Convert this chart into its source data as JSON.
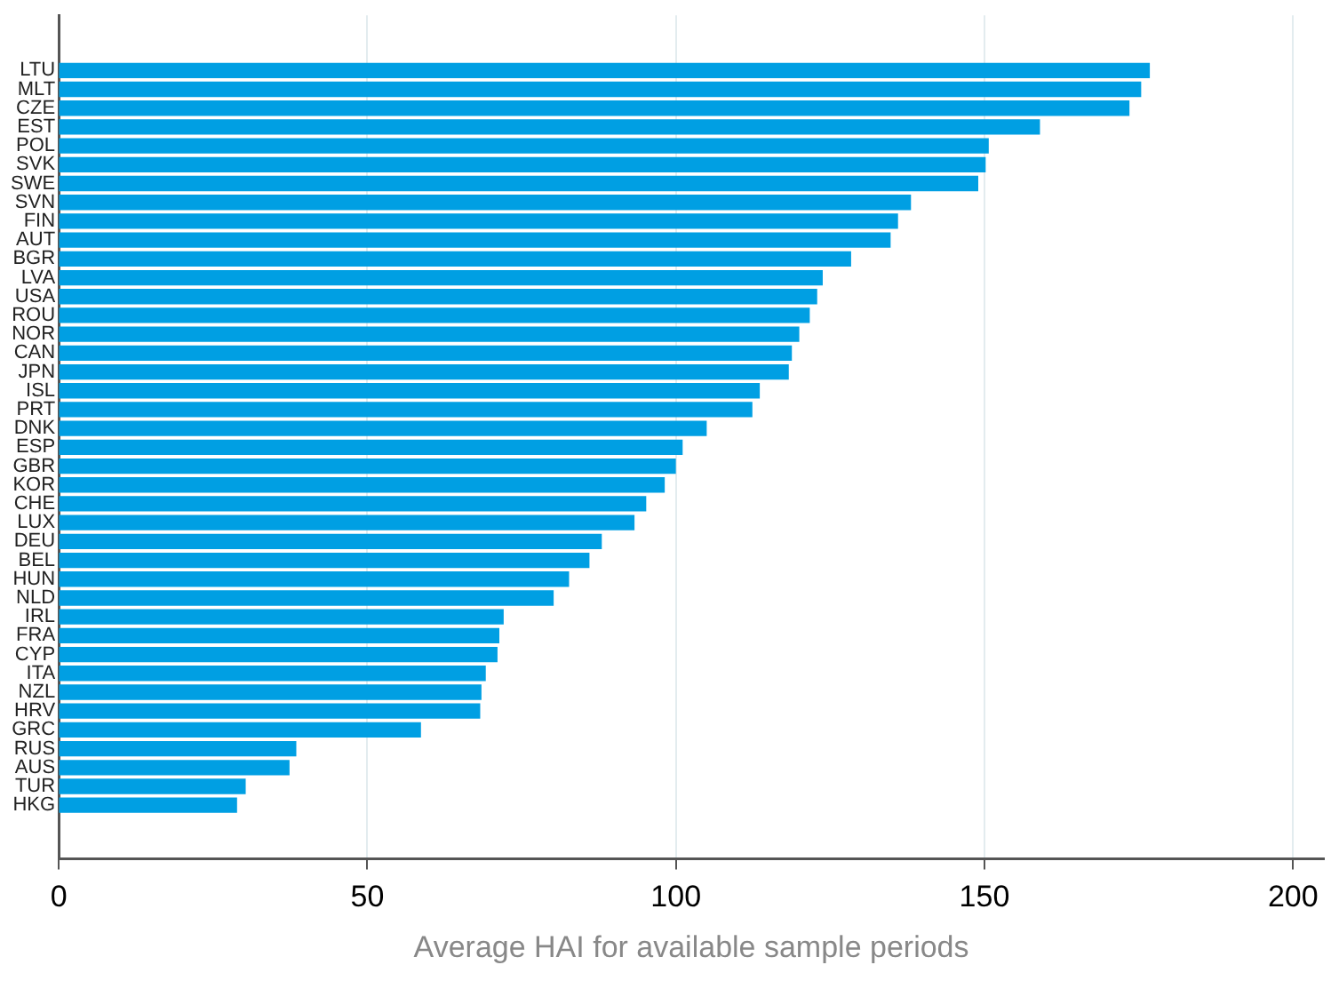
{
  "chart_data": {
    "type": "bar",
    "orientation": "horizontal",
    "xlabel": "Average HAI for available sample periods",
    "categories": [
      "LTU",
      "MLT",
      "CZE",
      "EST",
      "POL",
      "SVK",
      "SWE",
      "SVN",
      "FIN",
      "AUT",
      "BGR",
      "LVA",
      "USA",
      "ROU",
      "NOR",
      "CAN",
      "JPN",
      "ISL",
      "PRT",
      "DNK",
      "ESP",
      "GBR",
      "KOR",
      "CHE",
      "LUX",
      "DEU",
      "BEL",
      "HUN",
      "NLD",
      "IRL",
      "FRA",
      "CYP",
      "ITA",
      "NZL",
      "HRV",
      "GRC",
      "RUS",
      "AUS",
      "TUR",
      "HKG"
    ],
    "values": [
      176.7,
      175.3,
      173.4,
      158.9,
      150.6,
      150.1,
      148.9,
      138.0,
      135.9,
      134.7,
      128.3,
      123.7,
      122.8,
      121.6,
      119.9,
      118.7,
      118.2,
      113.5,
      112.3,
      104.9,
      101.0,
      99.9,
      98.1,
      95.1,
      93.2,
      87.9,
      85.9,
      82.6,
      80.1,
      72.0,
      71.3,
      71.0,
      69.1,
      68.4,
      68.2,
      58.6,
      38.4,
      37.3,
      30.2,
      28.8
    ],
    "color": "#009fe3",
    "xlim": [
      0,
      205
    ],
    "xticks": [
      0,
      50,
      100,
      150,
      200
    ],
    "grid": "x"
  }
}
